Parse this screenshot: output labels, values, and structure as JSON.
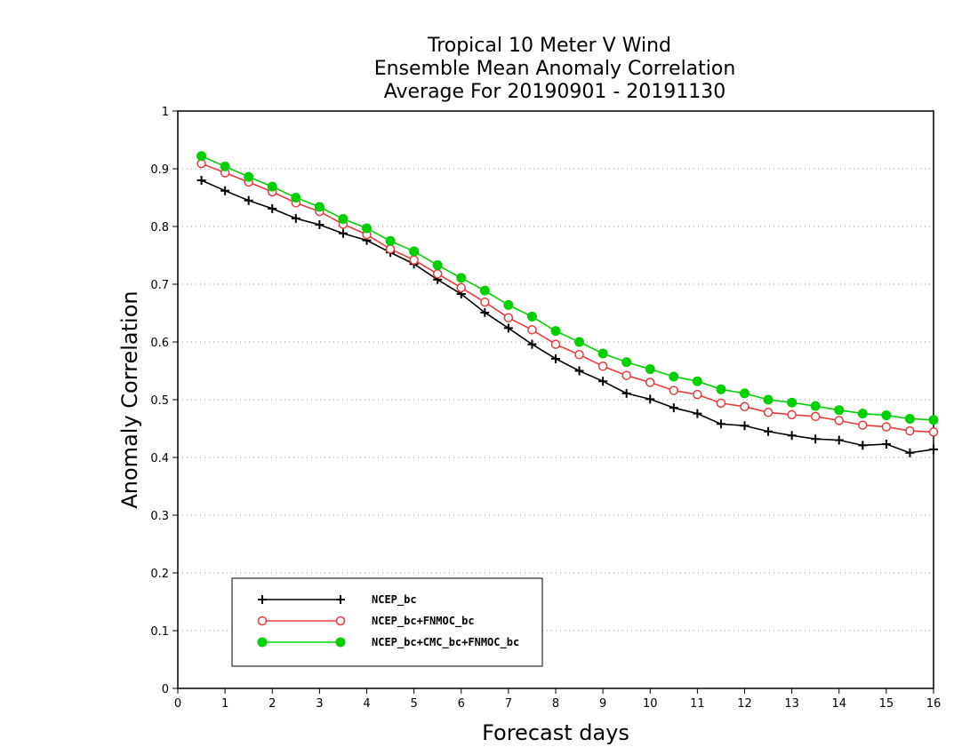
{
  "chart_data": {
    "type": "line",
    "title": [
      "Tropical 10 Meter V Wind",
      "Ensemble Mean Anomaly Correlation",
      "Average For 20190901 - 20191130"
    ],
    "xlabel": "Forecast days",
    "ylabel": "Anomaly Correlation",
    "xlim": [
      0,
      16
    ],
    "ylim": [
      0,
      1
    ],
    "xticks": [
      0,
      1,
      2,
      3,
      4,
      5,
      6,
      7,
      8,
      9,
      10,
      11,
      12,
      13,
      14,
      15,
      16
    ],
    "yticks": [
      0,
      0.1,
      0.2,
      0.3,
      0.4,
      0.5,
      0.6,
      0.7,
      0.8,
      0.9,
      1
    ],
    "grid": "y-dotted",
    "legend_position": "bottom-left",
    "x": [
      0.5,
      1,
      1.5,
      2,
      2.5,
      3,
      3.5,
      4,
      4.5,
      5,
      5.5,
      6,
      6.5,
      7,
      7.5,
      8,
      8.5,
      9,
      9.5,
      10,
      10.5,
      11,
      11.5,
      12,
      12.5,
      13,
      13.5,
      14,
      14.5,
      15,
      15.5,
      16
    ],
    "series": [
      {
        "name": "NCEP_bc",
        "color": "#000000",
        "marker": "plus",
        "values": [
          0.88,
          0.862,
          0.845,
          0.831,
          0.814,
          0.803,
          0.788,
          0.776,
          0.755,
          0.735,
          0.708,
          0.683,
          0.651,
          0.624,
          0.596,
          0.571,
          0.55,
          0.532,
          0.511,
          0.501,
          0.486,
          0.476,
          0.458,
          0.455,
          0.445,
          0.438,
          0.432,
          0.43,
          0.421,
          0.423,
          0.408,
          0.414
        ]
      },
      {
        "name": "NCEP_bc+FNMOC_bc",
        "color": "#e83b3b",
        "marker": "open-circle",
        "values": [
          0.909,
          0.893,
          0.877,
          0.86,
          0.841,
          0.826,
          0.804,
          0.786,
          0.761,
          0.742,
          0.718,
          0.694,
          0.669,
          0.642,
          0.621,
          0.596,
          0.578,
          0.558,
          0.542,
          0.53,
          0.516,
          0.509,
          0.494,
          0.488,
          0.478,
          0.474,
          0.471,
          0.464,
          0.456,
          0.453,
          0.446,
          0.444
        ]
      },
      {
        "name": "NCEP_bc+CMC_bc+FNMOC_bc",
        "color": "#00d000",
        "marker": "filled-circle",
        "values": [
          0.922,
          0.904,
          0.886,
          0.869,
          0.85,
          0.834,
          0.813,
          0.797,
          0.775,
          0.757,
          0.733,
          0.711,
          0.689,
          0.664,
          0.644,
          0.619,
          0.6,
          0.58,
          0.565,
          0.553,
          0.54,
          0.532,
          0.518,
          0.511,
          0.5,
          0.495,
          0.489,
          0.482,
          0.476,
          0.473,
          0.467,
          0.465
        ]
      }
    ]
  }
}
